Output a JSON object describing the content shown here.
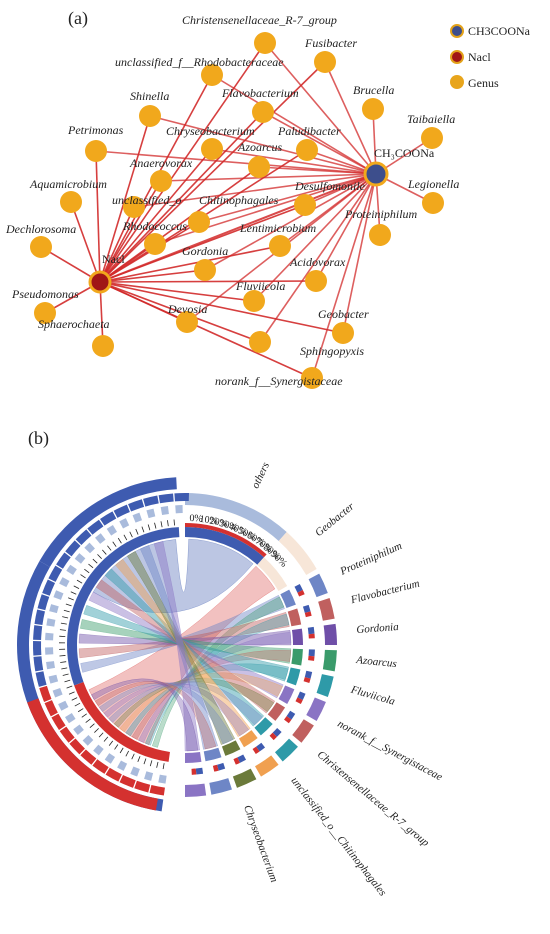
{
  "panel_a": {
    "label": "(a)",
    "legend": [
      {
        "label": "CH3COONa",
        "color": "#3d4e8c",
        "ring": "#e3a21a"
      },
      {
        "label": "Nacl",
        "color": "#a01616",
        "ring": "#e3a21a"
      },
      {
        "label": "Genus",
        "color": "#e8a51c",
        "ring": "#e8a51c"
      }
    ],
    "hubs": [
      {
        "id": "ch3",
        "label": "CH₃COONa",
        "color": "#3d4e8c"
      },
      {
        "id": "nacl",
        "label": "Nacl",
        "color": "#a01616"
      }
    ],
    "genus_color": "#f1a81c",
    "edge_color": "#d22a2a",
    "genera": [
      {
        "label": "Christensenellaceae_R-7_group"
      },
      {
        "label": "unclassified_f__Rhodobacteraceae"
      },
      {
        "label": "Fusibacter"
      },
      {
        "label": "Flavobacterium"
      },
      {
        "label": "Shinella"
      },
      {
        "label": "Brucella"
      },
      {
        "label": "Chryseobacterium"
      },
      {
        "label": "Paludibacter"
      },
      {
        "label": "Taibaiella"
      },
      {
        "label": "Petrimonas"
      },
      {
        "label": "Azoarcus"
      },
      {
        "label": "Anaerovorax"
      },
      {
        "label": "Legionella"
      },
      {
        "label": "Aquamicrobium"
      },
      {
        "label": "unclassified_o"
      },
      {
        "label": "Desulfomonile"
      },
      {
        "label": "Chitinophagales"
      },
      {
        "label": "Dechlorosoma"
      },
      {
        "label": "Proteiniphilum"
      },
      {
        "label": "Rhodococcus"
      },
      {
        "label": "Lentimicrobium"
      },
      {
        "label": "Gordonia"
      },
      {
        "label": "Acidovorax"
      },
      {
        "label": "Pseudomonas"
      },
      {
        "label": "Fluviicola"
      },
      {
        "label": "Devosia"
      },
      {
        "label": "Sphaerochaeta"
      },
      {
        "label": "Geobacter"
      },
      {
        "label": "Sphingopyxis"
      },
      {
        "label": "norank_f__Synergistaceae"
      }
    ]
  },
  "panel_b": {
    "label": "(b)",
    "right_labels": [
      "others",
      "Geobacter",
      "Proteiniphilum",
      "Flavobacterium",
      "Gordonia",
      "Azoarcus",
      "Fluviicola",
      "norank_f__Synergistaceae",
      "Christensenellaceae_R-7_group",
      "unclassified_o__Chitinophagales",
      "Chryseobacterium"
    ],
    "percent_ticks": [
      "0%",
      "10%",
      "20%",
      "30%",
      "40%",
      "50%",
      "60%",
      "70%",
      "80%",
      "90%"
    ],
    "colors": {
      "blue": "#3e5bb0",
      "red": "#d4312f",
      "light_blue": "#a9bbdc",
      "peach": "#f7e6d8",
      "slate": "#6e86c6",
      "rose": "#c0605f",
      "purple": "#6f4fa8",
      "green": "#3a9b6b",
      "teal": "#2e9aa8",
      "lilac": "#8a74c4",
      "orange": "#f0a050",
      "olive": "#6b7a3a"
    }
  }
}
